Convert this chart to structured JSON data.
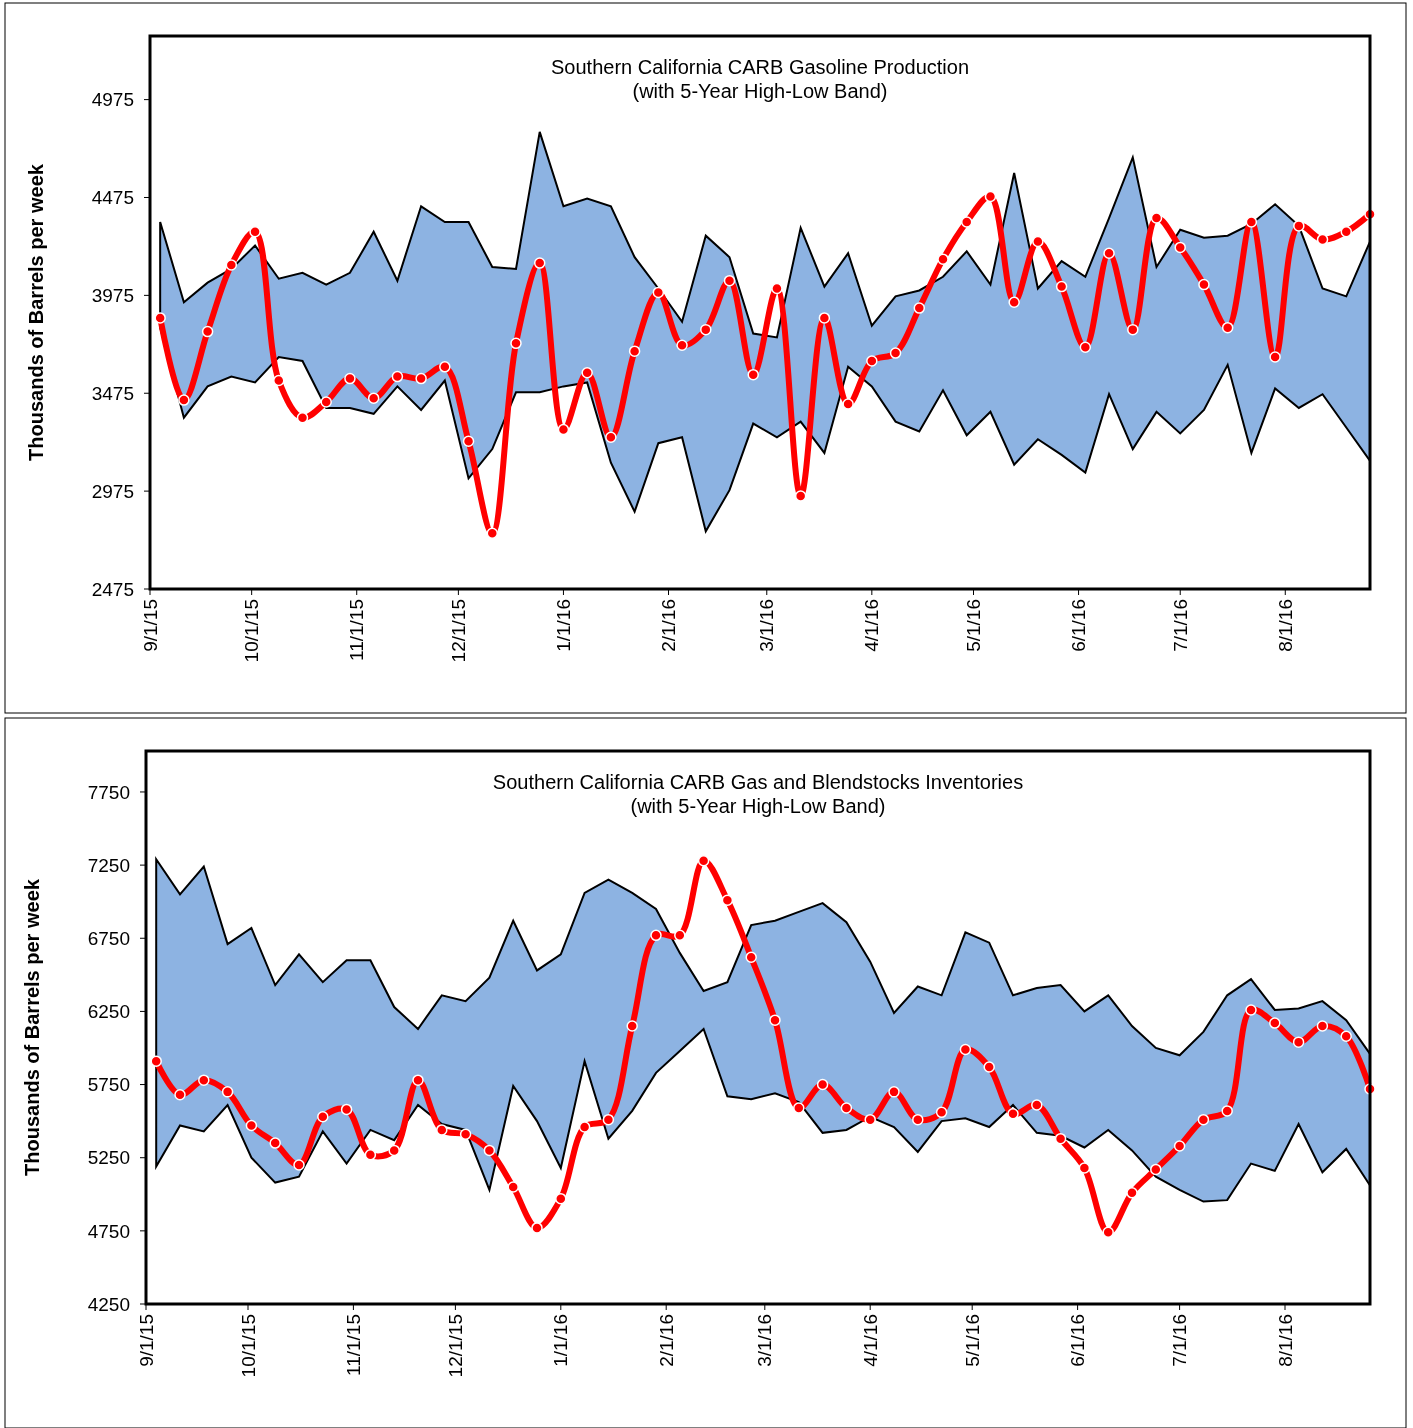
{
  "chart_data": [
    {
      "type": "line",
      "title": "Southern California CARB Gasoline Production",
      "subtitle": "(with 5-Year High-Low Band)",
      "ylabel": "Thousands of Barrels per week",
      "marker": "circle",
      "line_style": "solid",
      "x": [
        "2015-09-04",
        "2015-09-11",
        "2015-09-18",
        "2015-09-25",
        "2015-10-02",
        "2015-10-09",
        "2015-10-16",
        "2015-10-23",
        "2015-10-30",
        "2015-11-06",
        "2015-11-13",
        "2015-11-20",
        "2015-11-27",
        "2015-12-04",
        "2015-12-11",
        "2015-12-18",
        "2015-12-25",
        "2016-01-01",
        "2016-01-08",
        "2016-01-15",
        "2016-01-22",
        "2016-01-29",
        "2016-02-05",
        "2016-02-12",
        "2016-02-19",
        "2016-02-26",
        "2016-03-04",
        "2016-03-11",
        "2016-03-18",
        "2016-03-25",
        "2016-04-01",
        "2016-04-08",
        "2016-04-15",
        "2016-04-22",
        "2016-04-29",
        "2016-05-06",
        "2016-05-13",
        "2016-05-20",
        "2016-05-27",
        "2016-06-03",
        "2016-06-10",
        "2016-06-17",
        "2016-06-24",
        "2016-07-01",
        "2016-07-08",
        "2016-07-15",
        "2016-07-22",
        "2016-07-29",
        "2016-08-05",
        "2016-08-12",
        "2016-08-19",
        "2016-08-26"
      ],
      "xlim": [
        "2015-09-01",
        "2016-08-26"
      ],
      "xticks": [
        {
          "value": "2015-09-01",
          "label": "9/1/15"
        },
        {
          "value": "2015-10-01",
          "label": "10/1/15"
        },
        {
          "value": "2015-11-01",
          "label": "11/1/15"
        },
        {
          "value": "2015-12-01",
          "label": "12/1/15"
        },
        {
          "value": "2016-01-01",
          "label": "1/1/16"
        },
        {
          "value": "2016-02-01",
          "label": "2/1/16"
        },
        {
          "value": "2016-03-01",
          "label": "3/1/16"
        },
        {
          "value": "2016-04-01",
          "label": "4/1/16"
        },
        {
          "value": "2016-05-01",
          "label": "5/1/16"
        },
        {
          "value": "2016-06-01",
          "label": "6/1/16"
        },
        {
          "value": "2016-07-01",
          "label": "7/1/16"
        },
        {
          "value": "2016-08-01",
          "label": "8/1/16"
        }
      ],
      "ylim": [
        2475,
        5300
      ],
      "yticks": [
        2475,
        2975,
        3475,
        3975,
        4475,
        4975
      ],
      "series": [
        {
          "color": "#ff0000",
          "values": [
            3860,
            3440,
            3790,
            4130,
            4300,
            3540,
            3350,
            3430,
            3550,
            3450,
            3560,
            3550,
            3610,
            3230,
            2760,
            3730,
            4140,
            3290,
            3580,
            3250,
            3690,
            3990,
            3720,
            3800,
            4050,
            3570,
            4010,
            2950,
            3860,
            3420,
            3640,
            3680,
            3910,
            4160,
            4350,
            4480,
            3940,
            4250,
            4020,
            3710,
            4190,
            3800,
            4370,
            4220,
            4030,
            3810,
            4350,
            3660,
            4330,
            4260,
            4300,
            4390
          ],
          "upper": [
            4350,
            3940,
            4040,
            4110,
            4230,
            4060,
            4090,
            4030,
            4090,
            4300,
            4050,
            4430,
            4350,
            4350,
            4120,
            4110,
            4810,
            4430,
            4470,
            4430,
            4170,
            4010,
            3840,
            4280,
            4170,
            3780,
            3760,
            4320,
            4020,
            4190,
            3820,
            3970,
            4000,
            4070,
            4200,
            4030,
            4600,
            4010,
            4150,
            4070,
            4370,
            4680,
            4120,
            4310,
            4270,
            4280,
            4340,
            4440,
            4330,
            4010,
            3970,
            4250
          ],
          "lower": [
            3810,
            3350,
            3510,
            3560,
            3530,
            3660,
            3640,
            3400,
            3400,
            3370,
            3510,
            3390,
            3540,
            3040,
            3190,
            3480,
            3480,
            3510,
            3530,
            3120,
            2870,
            3220,
            3250,
            2770,
            2980,
            3320,
            3250,
            3330,
            3170,
            3610,
            3510,
            3330,
            3280,
            3490,
            3260,
            3380,
            3110,
            3240,
            3160,
            3070,
            3470,
            3190,
            3380,
            3270,
            3390,
            3620,
            3170,
            3500,
            3400,
            3470,
            3300,
            3130
          ]
        }
      ]
    },
    {
      "type": "line",
      "title": "Southern California CARB Gas and Blendstocks Inventories",
      "subtitle": "(with 5-Year High-Low Band)",
      "ylabel": "Thousands of Barrels per week",
      "marker": "circle",
      "line_style": "solid",
      "x": [
        "2015-09-04",
        "2015-09-11",
        "2015-09-18",
        "2015-09-25",
        "2015-10-02",
        "2015-10-09",
        "2015-10-16",
        "2015-10-23",
        "2015-10-30",
        "2015-11-06",
        "2015-11-13",
        "2015-11-20",
        "2015-11-27",
        "2015-12-04",
        "2015-12-11",
        "2015-12-18",
        "2015-12-25",
        "2016-01-01",
        "2016-01-08",
        "2016-01-15",
        "2016-01-22",
        "2016-01-29",
        "2016-02-05",
        "2016-02-12",
        "2016-02-19",
        "2016-02-26",
        "2016-03-04",
        "2016-03-11",
        "2016-03-18",
        "2016-03-25",
        "2016-04-01",
        "2016-04-08",
        "2016-04-15",
        "2016-04-22",
        "2016-04-29",
        "2016-05-06",
        "2016-05-13",
        "2016-05-20",
        "2016-05-27",
        "2016-06-03",
        "2016-06-10",
        "2016-06-17",
        "2016-06-24",
        "2016-07-01",
        "2016-07-08",
        "2016-07-15",
        "2016-07-22",
        "2016-07-29",
        "2016-08-05",
        "2016-08-12",
        "2016-08-19",
        "2016-08-26"
      ],
      "xlim": [
        "2015-09-01",
        "2016-08-26"
      ],
      "xticks": [
        {
          "value": "2015-09-01",
          "label": "9/1/15"
        },
        {
          "value": "2015-10-01",
          "label": "10/1/15"
        },
        {
          "value": "2015-11-01",
          "label": "11/1/15"
        },
        {
          "value": "2015-12-01",
          "label": "12/1/15"
        },
        {
          "value": "2016-01-01",
          "label": "1/1/16"
        },
        {
          "value": "2016-02-01",
          "label": "2/1/16"
        },
        {
          "value": "2016-03-01",
          "label": "3/1/16"
        },
        {
          "value": "2016-04-01",
          "label": "4/1/16"
        },
        {
          "value": "2016-05-01",
          "label": "5/1/16"
        },
        {
          "value": "2016-06-01",
          "label": "6/1/16"
        },
        {
          "value": "2016-07-01",
          "label": "7/1/16"
        },
        {
          "value": "2016-08-01",
          "label": "8/1/16"
        }
      ],
      "ylim": [
        4250,
        8030
      ],
      "yticks": [
        4250,
        4750,
        5250,
        5750,
        6250,
        6750,
        7250,
        7750
      ],
      "series": [
        {
          "color": "#ff0000",
          "values": [
            5910,
            5680,
            5780,
            5700,
            5470,
            5350,
            5200,
            5530,
            5580,
            5270,
            5300,
            5780,
            5440,
            5410,
            5300,
            5050,
            4770,
            4970,
            5460,
            5510,
            6150,
            6770,
            6770,
            7280,
            7010,
            6620,
            6190,
            5590,
            5750,
            5590,
            5510,
            5700,
            5510,
            5560,
            5990,
            5870,
            5550,
            5610,
            5380,
            5180,
            4740,
            5010,
            5170,
            5330,
            5510,
            5570,
            6260,
            6170,
            6040,
            6150,
            6080,
            5720
          ],
          "upper": [
            7290,
            7050,
            7240,
            6710,
            6820,
            6430,
            6640,
            6450,
            6600,
            6600,
            6280,
            6130,
            6360,
            6320,
            6480,
            6870,
            6530,
            6640,
            7060,
            7150,
            7060,
            6950,
            6650,
            6390,
            6450,
            6840,
            6870,
            6930,
            6990,
            6860,
            6590,
            6240,
            6420,
            6360,
            6790,
            6720,
            6360,
            6410,
            6430,
            6250,
            6360,
            6150,
            6000,
            5950,
            6110,
            6360,
            6470,
            6260,
            6270,
            6320,
            6190,
            5960
          ],
          "lower": [
            5190,
            5470,
            5430,
            5610,
            5250,
            5080,
            5120,
            5430,
            5210,
            5440,
            5370,
            5610,
            5480,
            5440,
            5030,
            5740,
            5500,
            5180,
            5910,
            5380,
            5570,
            5830,
            5980,
            6130,
            5670,
            5650,
            5690,
            5630,
            5420,
            5440,
            5530,
            5460,
            5290,
            5500,
            5520,
            5460,
            5610,
            5420,
            5400,
            5320,
            5440,
            5300,
            5120,
            5030,
            4950,
            4960,
            5210,
            5160,
            5480,
            5150,
            5310,
            5060
          ]
        }
      ]
    }
  ]
}
